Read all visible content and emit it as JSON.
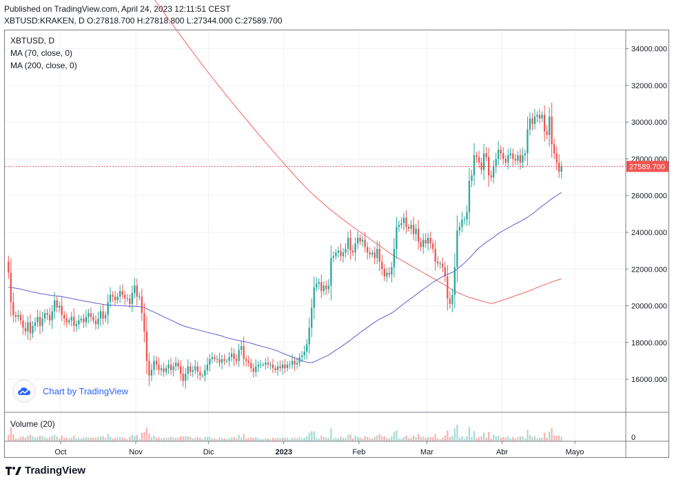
{
  "header": {
    "published": "Published on TradingView.com, April 24, 2023 12:11:51 CEST",
    "ohlc": "XBTUSD:KRAKEN, D O:27818.700 H:27818.800 L:27344.000 C:27589.700"
  },
  "legend": {
    "title": "XBTUSD, D",
    "ma1": "MA (70, close, 0)",
    "ma2": "MA (200, close, 0)",
    "volume": "Volume (20)"
  },
  "watermark": "Chart by TradingView",
  "footer": "TradingView",
  "colors": {
    "up": "#26a69a",
    "down": "#ef5350",
    "ma70": "#5b5bd6",
    "ma200": "#f0625d",
    "price_line": "#ef5350",
    "grid": "#eef0f3"
  },
  "chart_data": {
    "type": "candlestick",
    "symbol": "XBTUSD:KRAKEN",
    "timeframe": "D",
    "last_price": "27589.700",
    "y_ticks": [
      "34000.000",
      "32000.000",
      "30000.000",
      "28000.000",
      "26000.000",
      "24000.000",
      "22000.000",
      "20000.000",
      "18000.000",
      "16000.000"
    ],
    "ylim": [
      14200,
      35000
    ],
    "x_ticks": [
      {
        "label": "Oct",
        "day": 23
      },
      {
        "label": "Nov",
        "day": 54
      },
      {
        "label": "Dic",
        "day": 84
      },
      {
        "label": "2023",
        "day": 115
      },
      {
        "label": "Feb",
        "day": 146
      },
      {
        "label": "Mar",
        "day": 174
      },
      {
        "label": "Abr",
        "day": 205
      },
      {
        "label": "Mayo",
        "day": 235
      }
    ],
    "x_range": [
      0,
      256
    ],
    "volume_tick": "0",
    "closes": [
      21800,
      20200,
      19500,
      19400,
      19500,
      19200,
      18800,
      18600,
      19100,
      18500,
      18900,
      19100,
      19400,
      18900,
      19300,
      19600,
      19500,
      19200,
      19700,
      20300,
      19900,
      20000,
      19500,
      19300,
      19100,
      19200,
      19400,
      18900,
      19000,
      19200,
      19300,
      19100,
      19400,
      19600,
      19400,
      19200,
      19000,
      19300,
      19700,
      19300,
      19500,
      20200,
      20600,
      20500,
      20300,
      20500,
      20800,
      20600,
      20400,
      20400,
      20100,
      20700,
      21100,
      20500,
      20500,
      19600,
      18600,
      17000,
      16200,
      16500,
      17000,
      16800,
      16500,
      16600,
      16400,
      16600,
      16800,
      16500,
      16700,
      16900,
      16700,
      16300,
      15900,
      16300,
      16700,
      16400,
      16500,
      16700,
      16400,
      16200,
      16200,
      16500,
      16800,
      17100,
      17200,
      17100,
      17100,
      16900,
      17100,
      17000,
      17000,
      17200,
      17400,
      17100,
      17000,
      17600,
      17800,
      17100,
      17000,
      16900,
      16600,
      16400,
      16700,
      16800,
      16800,
      16800,
      16900,
      16800,
      16800,
      16600,
      16500,
      16700,
      16600,
      16800,
      16600,
      16800,
      16800,
      17000,
      16800,
      16900,
      17200,
      17300,
      17500,
      17900,
      18800,
      19900,
      21000,
      21200,
      21300,
      20800,
      21100,
      20900,
      21100,
      22600,
      22700,
      22900,
      23000,
      22700,
      22900,
      23100,
      23700,
      23000,
      22900,
      23400,
      23700,
      23500,
      23600,
      23200,
      22900,
      22800,
      22900,
      22600,
      23100,
      22400,
      22000,
      21600,
      21800,
      21700,
      22100,
      23100,
      24300,
      24400,
      24500,
      24800,
      24300,
      24200,
      24400,
      23900,
      24200,
      23500,
      23200,
      23600,
      23400,
      23700,
      23400,
      23100,
      22400,
      22300,
      22300,
      22100,
      21600,
      20400,
      20100,
      20600,
      22100,
      24100,
      24300,
      24700,
      24700,
      25100,
      26800,
      27100,
      28200,
      28100,
      27800,
      27400,
      28300,
      28100,
      27100,
      27000,
      27600,
      28000,
      28500,
      28300,
      28000,
      27800,
      28200,
      28300,
      28000,
      27900,
      28200,
      27800,
      28200,
      28300,
      29600,
      30200,
      29900,
      30300,
      30400,
      30200,
      30400,
      29500,
      29300,
      30300,
      28800,
      28300,
      27800,
      27300,
      27600
    ]
  }
}
